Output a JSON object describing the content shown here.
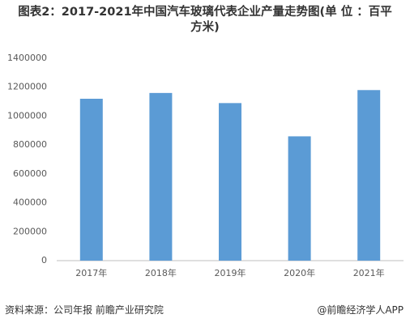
{
  "chart_data": {
    "type": "bar",
    "title": "图表2：2017-2021年中国汽车玻璃代表企业产量走势图(单 位 ：百平方米)",
    "categories": [
      "2017年",
      "2018年",
      "2019年",
      "2020年",
      "2021年"
    ],
    "values": [
      1120000,
      1160000,
      1090000,
      860000,
      1180000
    ],
    "color": "#5b9bd5",
    "ylim": [
      0,
      1400000
    ],
    "yticks": [
      0,
      200000,
      400000,
      600000,
      800000,
      1000000,
      1200000,
      1400000
    ],
    "grid": false
  },
  "footer": {
    "source": "资料来源：公司年报 前瞻产业研究院",
    "credit": "@前瞻经济学人APP"
  }
}
